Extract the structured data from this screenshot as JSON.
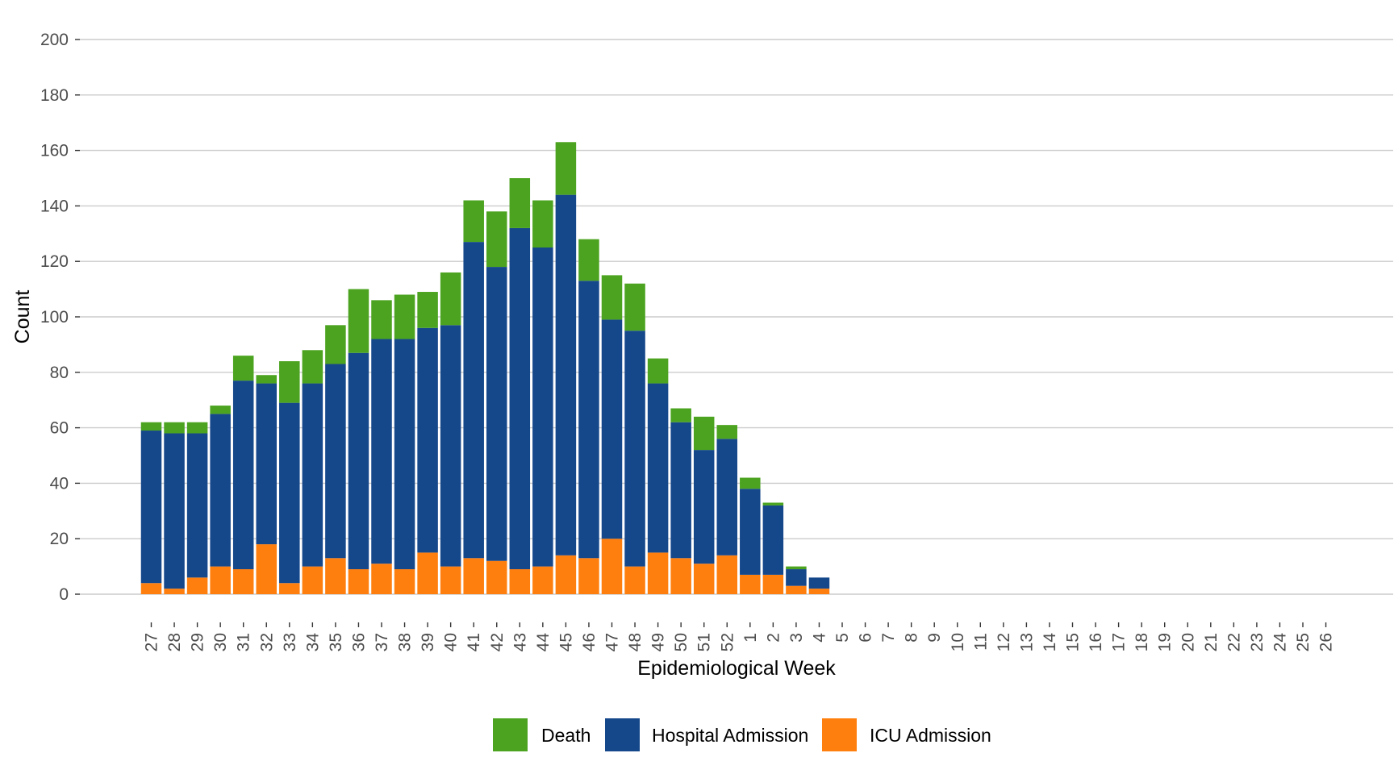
{
  "chart_data": {
    "type": "bar",
    "stacked": true,
    "xlabel": "Epidemiological Week",
    "ylabel": "Count",
    "ylim": [
      0,
      200
    ],
    "yticks": [
      0,
      20,
      40,
      60,
      80,
      100,
      120,
      140,
      160,
      180,
      200
    ],
    "grid": "horizontal",
    "legend_position": "bottom",
    "categories": [
      "27",
      "28",
      "29",
      "30",
      "31",
      "32",
      "33",
      "34",
      "35",
      "36",
      "37",
      "38",
      "39",
      "40",
      "41",
      "42",
      "43",
      "44",
      "45",
      "46",
      "47",
      "48",
      "49",
      "50",
      "51",
      "52",
      "1",
      "2",
      "3",
      "4",
      "5",
      "6",
      "7",
      "8",
      "9",
      "10",
      "11",
      "12",
      "13",
      "14",
      "15",
      "16",
      "17",
      "18",
      "19",
      "20",
      "21",
      "22",
      "23",
      "24",
      "25",
      "26"
    ],
    "series": [
      {
        "name": "ICU Admission",
        "color": "#ff7f0e",
        "values": [
          4,
          2,
          6,
          10,
          9,
          18,
          4,
          10,
          13,
          9,
          11,
          9,
          15,
          10,
          13,
          12,
          9,
          10,
          14,
          13,
          20,
          10,
          15,
          13,
          11,
          14,
          7,
          7,
          3,
          2,
          0,
          0,
          0,
          0,
          0,
          0,
          0,
          0,
          0,
          0,
          0,
          0,
          0,
          0,
          0,
          0,
          0,
          0,
          0,
          0,
          0,
          0
        ]
      },
      {
        "name": "Hospital Admission",
        "color": "#15478b",
        "values": [
          55,
          56,
          52,
          55,
          68,
          58,
          65,
          66,
          70,
          78,
          81,
          83,
          81,
          87,
          114,
          106,
          123,
          115,
          130,
          100,
          79,
          85,
          61,
          49,
          41,
          42,
          31,
          25,
          6,
          4,
          0,
          0,
          0,
          0,
          0,
          0,
          0,
          0,
          0,
          0,
          0,
          0,
          0,
          0,
          0,
          0,
          0,
          0,
          0,
          0,
          0,
          0
        ]
      },
      {
        "name": "Death",
        "color": "#4ba31f",
        "values": [
          3,
          4,
          4,
          3,
          9,
          3,
          15,
          12,
          14,
          23,
          14,
          16,
          13,
          19,
          15,
          20,
          18,
          17,
          19,
          15,
          16,
          17,
          9,
          5,
          12,
          5,
          4,
          1,
          1,
          0,
          0,
          0,
          0,
          0,
          0,
          0,
          0,
          0,
          0,
          0,
          0,
          0,
          0,
          0,
          0,
          0,
          0,
          0,
          0,
          0,
          0,
          0
        ]
      }
    ],
    "legend": [
      {
        "name": "Death",
        "color": "#4ba31f"
      },
      {
        "name": "Hospital Admission",
        "color": "#15478b"
      },
      {
        "name": "ICU Admission",
        "color": "#ff7f0e"
      }
    ]
  }
}
